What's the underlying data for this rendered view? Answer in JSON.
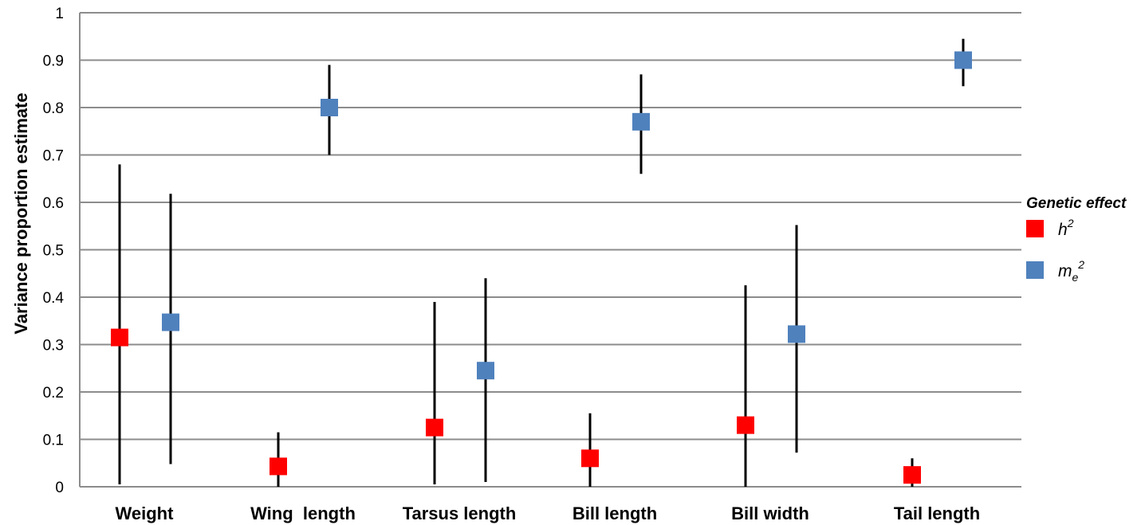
{
  "chart_data": {
    "type": "scatter",
    "ylabel": "Variance proportion estimate",
    "xlabel": "",
    "ylim": [
      0,
      1
    ],
    "yticks": [
      0,
      0.1,
      0.2,
      0.3,
      0.4,
      0.5,
      0.6,
      0.7,
      0.8,
      0.9,
      1
    ],
    "ytick_labels": [
      "0",
      "0.1",
      "0.2",
      "0.3",
      "0.4",
      "0.5",
      "0.6",
      "0.7",
      "0.8",
      "0.9",
      "1"
    ],
    "grid": true,
    "categories": [
      "Weight",
      "Wing  length",
      "Tarsus length",
      "Bill length",
      "Bill width",
      "Tail length"
    ],
    "legend": {
      "title": "Genetic effect",
      "placement": "right"
    },
    "series": [
      {
        "name": "h2",
        "label_base": "h",
        "label_sup": "2",
        "label_sub": "",
        "color": "#FF0000",
        "values": [
          0.315,
          0.043,
          0.125,
          0.06,
          0.13,
          0.025
        ],
        "err_low": [
          0.005,
          0.0,
          0.005,
          0.0,
          0.0,
          0.0
        ],
        "err_high": [
          0.68,
          0.115,
          0.39,
          0.155,
          0.425,
          0.06
        ]
      },
      {
        "name": "me2",
        "label_base": "m",
        "label_sup": "2",
        "label_sub": "e",
        "color": "#4F81BD",
        "values": [
          0.347,
          0.8,
          0.245,
          0.77,
          0.322,
          0.9
        ],
        "err_low": [
          0.048,
          0.7,
          0.01,
          0.66,
          0.072,
          0.845
        ],
        "err_high": [
          0.618,
          0.89,
          0.44,
          0.87,
          0.552,
          0.945
        ]
      }
    ]
  }
}
